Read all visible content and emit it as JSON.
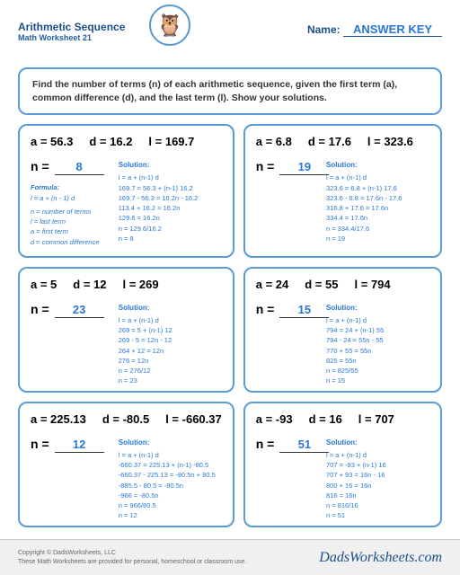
{
  "header": {
    "title": "Arithmetic Sequence",
    "subtitle": "Math Worksheet 21",
    "name_label": "Name:",
    "answer_key": "ANSWER KEY"
  },
  "instructions": "Find the number of terms (n) of each arithmetic sequence, given the first term (a), common difference (d), and the last term (l).  Show your solutions.",
  "formula": {
    "title": "Formula:",
    "eq": "l = a + (n - 1) d",
    "legend": "n = number of terms\nl = last term\na = first term\nd = common difference"
  },
  "problems": [
    {
      "a": "56.3",
      "d": "16.2",
      "l": "169.7",
      "n": "8",
      "steps": [
        "l = a + (n-1) d",
        "169.7 =  56.3 + (n-1) 16.2",
        "169.7 - 56.3 = 16.2n - 16.2",
        "113.4 + 16.2 =  16.2n",
        "129.6 =  16.2n",
        "n = 129.6/16.2",
        "n = 8"
      ],
      "show_formula": true
    },
    {
      "a": "6.8",
      "d": "17.6",
      "l": "323.6",
      "n": "19",
      "steps": [
        "l = a + (n-1) d",
        "323.6 =  6.8 + (n-1) 17.6",
        "323.6 - 6.8 = 17.6n - 17.6",
        "316.8 + 17.6 =  17.6n",
        "334.4 =  17.6n",
        "n = 334.4/17.6",
        "n = 19"
      ]
    },
    {
      "a": "5",
      "d": "12",
      "l": "269",
      "n": "23",
      "steps": [
        "l = a + (n-1) d",
        "269 =  5 + (n-1) 12",
        "269 - 5 = 12n - 12",
        "264 + 12 =  12n",
        "276 =  12n",
        "n = 276/12",
        "n = 23"
      ]
    },
    {
      "a": "24",
      "d": "55",
      "l": "794",
      "n": "15",
      "steps": [
        "l = a + (n-1) d",
        "794 =  24 + (n-1) 55",
        "794 - 24 = 55n - 55",
        "770 + 55 =  55n",
        "825 =  55n",
        "n = 825/55",
        "n = 15"
      ]
    },
    {
      "a": "225.13",
      "d": "-80.5",
      "l": "-660.37",
      "n": "12",
      "steps": [
        "l = a + (n-1) d",
        "-660.37 =  225.13 + (n-1) -80.5",
        "-660.37 - 225.13 = -80.5n + 80.5",
        "-885.5 - 80.5 =  -80.5n",
        "-966 =  -80.5n",
        "n = 966/80.5",
        "n = 12"
      ]
    },
    {
      "a": "-93",
      "d": "16",
      "l": "707",
      "n": "51",
      "steps": [
        "l = a + (n-1) d",
        "707 =  -93 + (n-1) 16",
        "707 + 93 = 16n - 16",
        "800 + 16 =  16n",
        "816 =  16n",
        "n = 816/16",
        "n = 51"
      ]
    }
  ],
  "solution_label": "Solution:",
  "footer": {
    "copyright": "Copyright © DadsWorksheets, LLC",
    "note": "These Math Worksheets are provided for personal, homeschool or classroom use.",
    "brand": "DadsWorksheets.com"
  },
  "colors": {
    "border": "#5b9bd5",
    "accent": "#2878d4",
    "heading": "#1a4f8a"
  }
}
